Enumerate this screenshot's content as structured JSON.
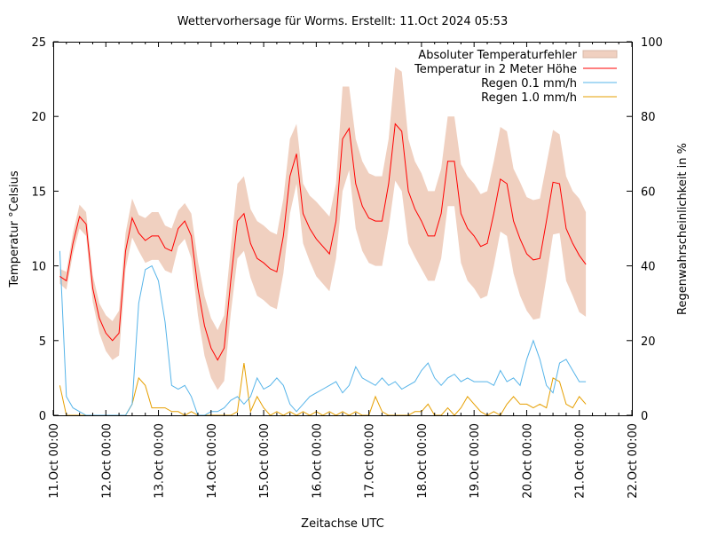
{
  "chart_data": {
    "type": "line",
    "title": "Wettervorhersage für Worms. Erstellt: 11.Oct 2024 05:53",
    "xlabel": "Zeitachse UTC",
    "ylabel": "Temperatur °Celsius",
    "y2label": "Regenwahrscheinlichkeit in %",
    "xlim": [
      "2024-10-11 00:00",
      "2024-10-22 00:00"
    ],
    "ylim": [
      0,
      25
    ],
    "y2lim": [
      0,
      100
    ],
    "yticks": [
      "0",
      "5",
      "10",
      "15",
      "20",
      "25"
    ],
    "y2ticks": [
      "0",
      "20",
      "40",
      "60",
      "80",
      "100"
    ],
    "xticks": [
      "11.Oct 00:00",
      "12.Oct 00:00",
      "13.Oct 00:00",
      "14.Oct 00:00",
      "15.Oct 00:00",
      "16.Oct 00:00",
      "17.Oct 00:00",
      "18.Oct 00:00",
      "19.Oct 00:00",
      "20.Oct 00:00",
      "21.Oct 00:00",
      "22.Oct 00:00"
    ],
    "grid": false,
    "legend_position": "top-right",
    "x_start": "2024-10-11 03:00",
    "x_step_hours": 3,
    "series": [
      {
        "name": "Absoluter Temperaturfehler",
        "kind": "band",
        "axis": "y",
        "color": "#f0d0c0",
        "values": [
          0.5,
          0.6,
          0.7,
          0.8,
          0.8,
          0.9,
          1.0,
          1.2,
          1.3,
          1.5,
          1.2,
          1.3,
          1.2,
          1.5,
          1.6,
          1.6,
          1.5,
          1.5,
          1.2,
          1.2,
          1.5,
          1.8,
          2.0,
          2.0,
          2.0,
          2.2,
          2.2,
          2.5,
          2.5,
          2.3,
          2.5,
          2.5,
          2.5,
          2.5,
          2.5,
          2.5,
          2.0,
          2.0,
          2.2,
          2.5,
          2.5,
          2.5,
          2.5,
          3.5,
          2.8,
          3.0,
          3.0,
          3.0,
          3.0,
          3.0,
          3.0,
          3.8,
          4.0,
          3.5,
          3.2,
          3.2,
          3.0,
          3.0,
          3.0,
          3.0,
          3.0,
          3.3,
          3.5,
          3.5,
          3.5,
          3.5,
          3.5,
          3.5,
          3.5,
          3.5,
          3.8,
          3.8,
          4.0,
          4.0,
          3.8,
          3.5,
          3.3,
          3.5,
          3.5,
          3.8,
          3.5
        ]
      },
      {
        "name": "Temperatur in 2 Meter Höhe",
        "kind": "line",
        "axis": "y",
        "color": "#ff0000",
        "values": [
          9.3,
          9.0,
          11.5,
          13.3,
          12.8,
          8.5,
          6.5,
          5.5,
          5.0,
          5.5,
          11.0,
          13.2,
          12.2,
          11.7,
          12.0,
          12.0,
          11.2,
          11.0,
          12.5,
          13.0,
          12.0,
          8.5,
          6.0,
          4.5,
          3.7,
          4.5,
          9.0,
          13.0,
          13.5,
          11.5,
          10.5,
          10.2,
          9.8,
          9.6,
          12.0,
          16.0,
          17.5,
          13.5,
          12.5,
          11.8,
          11.3,
          10.8,
          13.0,
          18.5,
          19.2,
          15.5,
          14.0,
          13.2,
          13.0,
          13.0,
          15.5,
          19.5,
          19.0,
          15.0,
          13.8,
          13.0,
          12.0,
          12.0,
          13.5,
          17.0,
          17.0,
          13.5,
          12.5,
          12.0,
          11.3,
          11.5,
          13.5,
          15.8,
          15.5,
          13.0,
          11.8,
          10.8,
          10.4,
          10.5,
          13.0,
          15.6,
          15.5,
          12.5,
          11.5,
          10.7,
          10.1
        ]
      },
      {
        "name": "Regen 0.1 mm/h",
        "kind": "line",
        "axis": "y2",
        "color": "#56b4e9",
        "values": [
          44,
          5,
          2,
          1,
          0,
          0,
          0,
          0,
          0,
          0,
          0,
          3,
          30,
          39,
          40,
          36,
          25,
          8,
          7,
          8,
          5,
          0,
          0,
          1,
          1,
          2,
          4,
          5,
          3,
          5,
          10,
          7,
          8,
          10,
          8,
          3,
          1,
          3,
          5,
          6,
          7,
          8,
          9,
          6,
          8,
          13,
          10,
          9,
          8,
          10,
          8,
          9,
          7,
          8,
          9,
          12,
          14,
          10,
          8,
          10,
          11,
          9,
          10,
          9,
          9,
          9,
          8,
          12,
          9,
          10,
          8,
          15,
          20,
          15,
          8,
          6,
          14,
          15,
          12,
          9,
          9
        ]
      },
      {
        "name": "Regen 1.0 mm/h",
        "kind": "line",
        "axis": "y2",
        "color": "#e69f00",
        "values": [
          8,
          0,
          0,
          0,
          0,
          0,
          0,
          0,
          0,
          0,
          0,
          3,
          10,
          8,
          2,
          2,
          2,
          1,
          1,
          0,
          1,
          0,
          0,
          0,
          0,
          0,
          0,
          1,
          14,
          1,
          5,
          2,
          0,
          1,
          0,
          1,
          0,
          1,
          0,
          1,
          0,
          1,
          0,
          1,
          0,
          1,
          0,
          0,
          5,
          1,
          0,
          0,
          0,
          0,
          1,
          1,
          3,
          0,
          0,
          2,
          0,
          2,
          5,
          3,
          1,
          0,
          1,
          0,
          3,
          5,
          3,
          3,
          2,
          3,
          2,
          10,
          9,
          3,
          2,
          5,
          3
        ]
      }
    ]
  }
}
